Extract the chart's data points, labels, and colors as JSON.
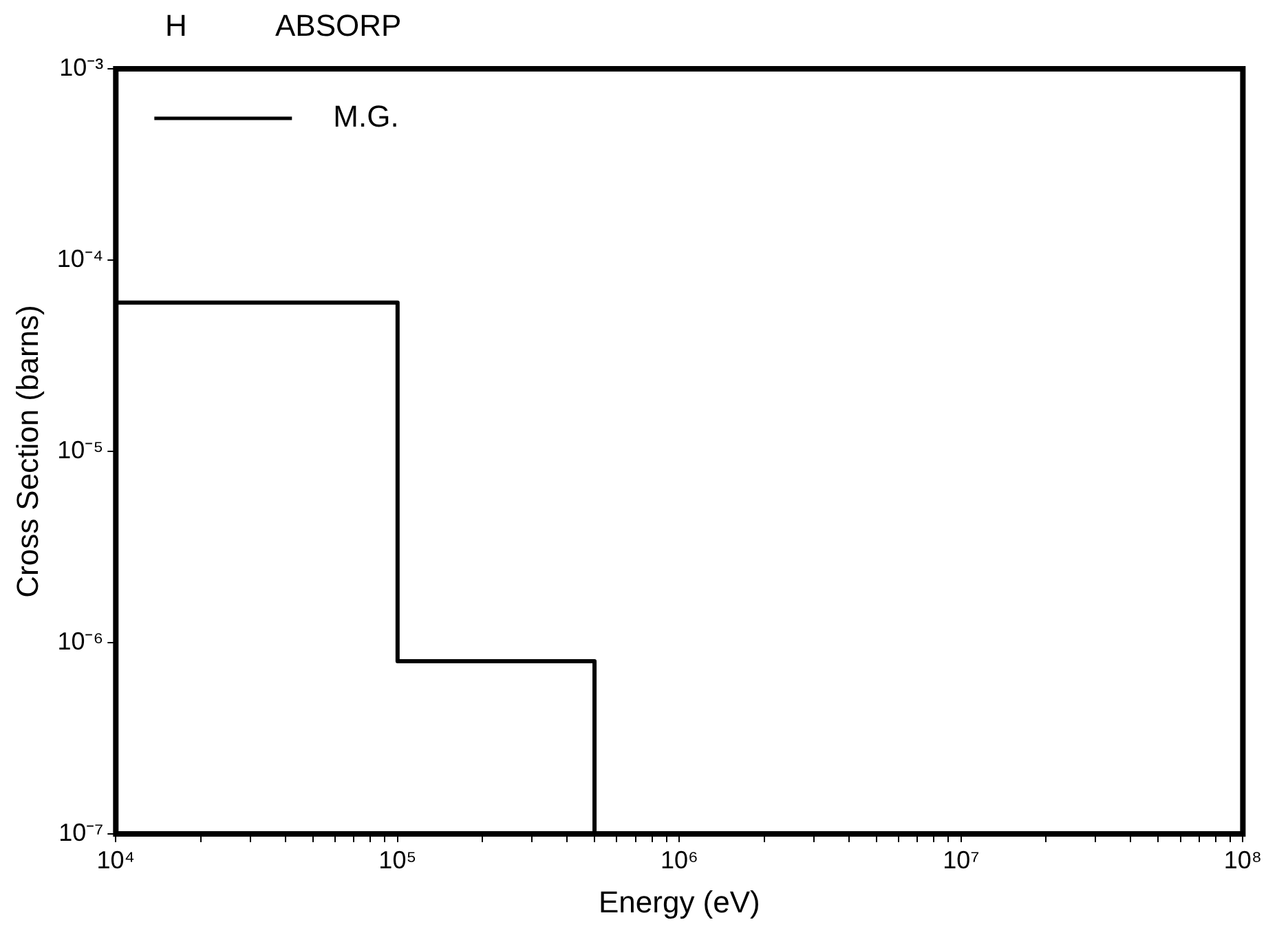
{
  "chart_data": {
    "type": "step",
    "title": "H",
    "subtitle": "ABSORP",
    "xlabel": "Energy (eV)",
    "ylabel": "Cross Section (barns)",
    "log": "xy",
    "grid": false,
    "legend": "top left",
    "marker": "none",
    "line_style": "solid",
    "xlim": [
      10000,
      100000000
    ],
    "ylim": [
      1e-07,
      0.001
    ],
    "xticks": [
      {
        "value": 10000,
        "label": "10⁴"
      },
      {
        "value": 20000,
        "label": null
      },
      {
        "value": 30000,
        "label": null
      },
      {
        "value": 40000,
        "label": null
      },
      {
        "value": 50000,
        "label": null
      },
      {
        "value": 60000,
        "label": null
      },
      {
        "value": 70000,
        "label": null
      },
      {
        "value": 80000,
        "label": null
      },
      {
        "value": 90000,
        "label": null
      },
      {
        "value": 100000,
        "label": "10⁵"
      },
      {
        "value": 200000,
        "label": null
      },
      {
        "value": 300000,
        "label": null
      },
      {
        "value": 400000,
        "label": null
      },
      {
        "value": 500000,
        "label": null
      },
      {
        "value": 600000,
        "label": null
      },
      {
        "value": 700000,
        "label": null
      },
      {
        "value": 800000,
        "label": null
      },
      {
        "value": 900000,
        "label": null
      },
      {
        "value": 1000000,
        "label": "10⁶"
      },
      {
        "value": 2000000,
        "label": null
      },
      {
        "value": 3000000,
        "label": null
      },
      {
        "value": 4000000,
        "label": null
      },
      {
        "value": 5000000,
        "label": null
      },
      {
        "value": 6000000,
        "label": null
      },
      {
        "value": 7000000,
        "label": null
      },
      {
        "value": 8000000,
        "label": null
      },
      {
        "value": 9000000,
        "label": null
      },
      {
        "value": 10000000,
        "label": "10⁷"
      },
      {
        "value": 20000000,
        "label": null
      },
      {
        "value": 30000000,
        "label": null
      },
      {
        "value": 40000000,
        "label": null
      },
      {
        "value": 50000000,
        "label": null
      },
      {
        "value": 60000000,
        "label": null
      },
      {
        "value": 70000000,
        "label": null
      },
      {
        "value": 80000000,
        "label": null
      },
      {
        "value": 90000000,
        "label": null
      },
      {
        "value": 100000000,
        "label": "10⁸"
      }
    ],
    "yticks": [
      {
        "value": 1e-07,
        "label": "10⁻⁷"
      },
      {
        "value": 1e-06,
        "label": "10⁻⁶"
      },
      {
        "value": 1e-05,
        "label": "10⁻⁵"
      },
      {
        "value": 0.0001,
        "label": "10⁻⁴"
      },
      {
        "value": 0.001,
        "label": "10⁻³"
      }
    ],
    "x": [
      10000,
      100000,
      500000
    ],
    "series": [
      {
        "name": "M.G.",
        "color": "#000000",
        "values": [
          6e-05,
          8e-07,
          1e-07
        ]
      }
    ]
  }
}
